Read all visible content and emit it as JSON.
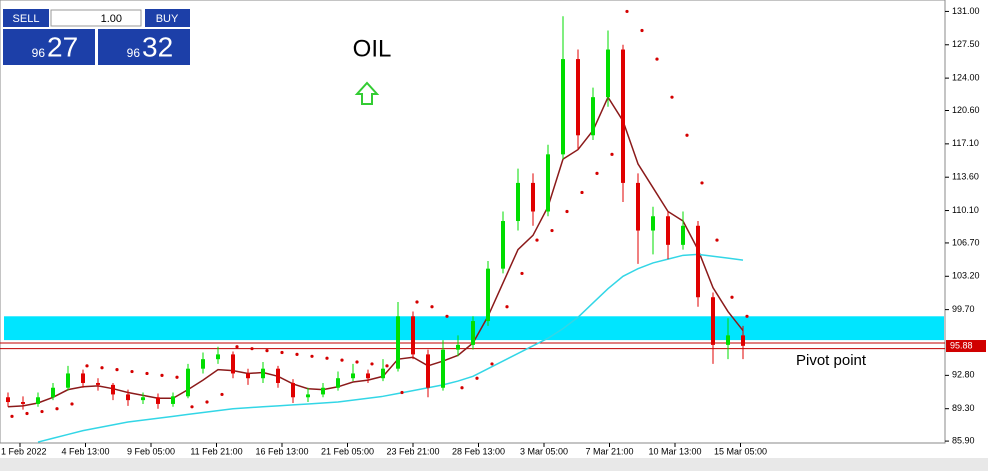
{
  "chart_data": {
    "type": "candlestick",
    "annotation": "OIL",
    "pivot_label": "Pivot point",
    "x_labels": [
      "1 Feb 2022",
      "4 Feb 13:00",
      "9 Feb 05:00",
      "11 Feb 21:00",
      "16 Feb 13:00",
      "21 Feb 05:00",
      "23 Feb 21:00",
      "28 Feb 13:00",
      "3 Mar 05:00",
      "7 Mar 21:00",
      "10 Mar 13:00",
      "15 Mar 05:00"
    ],
    "ylim": [
      85.7,
      132.2
    ],
    "yticks": [
      {
        "value": 131,
        "label": "131.00"
      },
      {
        "value": 127.5,
        "label": "127.50"
      },
      {
        "value": 124,
        "label": "124.00"
      },
      {
        "value": 120.6,
        "label": "120.60"
      },
      {
        "value": 117.1,
        "label": "117.10"
      },
      {
        "value": 113.6,
        "label": "113.60"
      },
      {
        "value": 110.1,
        "label": "110.10"
      },
      {
        "value": 106.7,
        "label": "106.70"
      },
      {
        "value": 103.2,
        "label": "103.20"
      },
      {
        "value": 99.7,
        "label": "99.70"
      },
      {
        "value": 92.8,
        "label": "92.80"
      },
      {
        "value": 89.3,
        "label": "89.30"
      },
      {
        "value": 85.9,
        "label": "85.90"
      }
    ],
    "last_price": 95.88,
    "zone": [
      96.5,
      99.0
    ],
    "zone_color": "#00e5ff",
    "levels": [
      96.2,
      95.6
    ],
    "level_color": "#c00000",
    "up_color": "#00dd00",
    "down_color": "#e00000",
    "candles": [
      [
        90.5,
        91.0,
        89.5,
        90.0
      ],
      [
        90.0,
        90.6,
        89.2,
        89.8
      ],
      [
        89.8,
        91.0,
        89.5,
        90.5
      ],
      [
        90.5,
        92.0,
        90.2,
        91.5
      ],
      [
        91.5,
        93.8,
        91.2,
        93.0
      ],
      [
        93.0,
        93.4,
        91.5,
        92.0
      ],
      [
        92.0,
        92.5,
        91.2,
        91.8
      ],
      [
        91.8,
        92.0,
        90.2,
        90.8
      ],
      [
        90.8,
        91.3,
        89.6,
        90.2
      ],
      [
        90.2,
        91.0,
        89.8,
        90.5
      ],
      [
        90.5,
        90.9,
        89.3,
        89.8
      ],
      [
        89.8,
        91.0,
        89.5,
        90.6
      ],
      [
        90.6,
        94.0,
        90.4,
        93.5
      ],
      [
        93.5,
        95.2,
        93.0,
        94.5
      ],
      [
        94.5,
        95.8,
        94.0,
        95.0
      ],
      [
        95.0,
        95.3,
        92.5,
        93.0
      ],
      [
        93.0,
        93.5,
        91.8,
        92.5
      ],
      [
        92.5,
        94.2,
        92.0,
        93.5
      ],
      [
        93.5,
        93.8,
        91.5,
        92.0
      ],
      [
        92.0,
        92.4,
        89.9,
        90.5
      ],
      [
        90.5,
        91.5,
        90.0,
        90.8
      ],
      [
        90.8,
        92.0,
        90.5,
        91.5
      ],
      [
        91.5,
        93.2,
        91.2,
        92.5
      ],
      [
        92.5,
        94.0,
        92.2,
        93.0
      ],
      [
        93.0,
        93.4,
        92.0,
        92.5
      ],
      [
        92.5,
        94.5,
        92.2,
        93.5
      ],
      [
        93.5,
        100.5,
        93.2,
        99.0
      ],
      [
        99.0,
        99.5,
        94.5,
        95.0
      ],
      [
        95.0,
        95.5,
        90.5,
        91.5
      ],
      [
        91.5,
        96.5,
        91.2,
        95.5
      ],
      [
        95.5,
        97.0,
        94.8,
        96.0
      ],
      [
        96.0,
        99.0,
        95.5,
        98.5
      ],
      [
        98.5,
        104.8,
        98.0,
        104.0
      ],
      [
        104.0,
        110.0,
        103.5,
        109.0
      ],
      [
        109.0,
        114.5,
        108.0,
        113.0
      ],
      [
        113.0,
        114.0,
        108.5,
        110.0
      ],
      [
        110.0,
        117.0,
        109.5,
        116.0
      ],
      [
        116.0,
        130.5,
        115.5,
        126.0
      ],
      [
        126.0,
        127.0,
        116.5,
        118.0
      ],
      [
        118.0,
        123.0,
        117.5,
        122.0
      ],
      [
        122.0,
        129.0,
        121.0,
        127.0
      ],
      [
        127.0,
        127.5,
        111.0,
        113.0
      ],
      [
        113.0,
        114.0,
        104.5,
        108.0
      ],
      [
        108.0,
        110.5,
        105.5,
        109.5
      ],
      [
        109.5,
        110.0,
        105.0,
        106.5
      ],
      [
        106.5,
        110.0,
        106.0,
        108.5
      ],
      [
        108.5,
        109.0,
        100.0,
        101.0
      ],
      [
        101.0,
        101.5,
        94.0,
        96.0
      ],
      [
        96.0,
        98.8,
        94.5,
        97.0
      ],
      [
        97.0,
        98.0,
        94.5,
        95.9
      ]
    ],
    "lines": [
      {
        "color": "#8b1a1a",
        "values": [
          89.5,
          89.6,
          89.9,
          90.5,
          91.3,
          91.6,
          91.7,
          91.4,
          91.0,
          90.7,
          90.4,
          90.4,
          91.3,
          92.3,
          93.4,
          93.3,
          93.0,
          93.1,
          92.7,
          91.9,
          91.4,
          91.3,
          91.6,
          92.1,
          92.3,
          92.7,
          94.5,
          94.7,
          93.8,
          94.3,
          94.9,
          96.2,
          99.0,
          102.5,
          106.0,
          107.5,
          110.5,
          115.5,
          116.5,
          118.5,
          122.0,
          119.5,
          115.0,
          112.5,
          110.0,
          109.0,
          106.0,
          102.0,
          99.5,
          97.5
        ]
      },
      {
        "color": "#33d6e6",
        "values": [
          null,
          null,
          85.8,
          86.2,
          86.6,
          87.0,
          87.3,
          87.6,
          87.9,
          88.1,
          88.3,
          88.5,
          88.7,
          88.9,
          89.1,
          89.3,
          89.4,
          89.5,
          89.6,
          89.7,
          89.8,
          89.9,
          90.0,
          90.2,
          90.4,
          90.6,
          90.9,
          91.2,
          91.5,
          91.8,
          92.2,
          92.7,
          93.5,
          94.3,
          95.1,
          95.9,
          96.7,
          97.7,
          98.9,
          100.4,
          101.9,
          103.2,
          104.0,
          104.6,
          105.0,
          105.4,
          105.5,
          105.3,
          105.1,
          104.9
        ]
      }
    ],
    "sar": {
      "color": "#d40000",
      "values": [
        88.5,
        88.8,
        89.0,
        89.3,
        89.8,
        93.8,
        93.6,
        93.4,
        93.2,
        93.0,
        92.8,
        92.6,
        89.5,
        90.0,
        90.8,
        95.8,
        95.6,
        95.4,
        95.2,
        95.0,
        94.8,
        94.6,
        94.4,
        94.2,
        94.0,
        93.8,
        91.0,
        100.5,
        100.0,
        99.0,
        91.5,
        92.5,
        94.0,
        100.0,
        103.5,
        107.0,
        108.0,
        110.0,
        112.0,
        114.0,
        116.0,
        131.0,
        129.0,
        126.0,
        122.0,
        118.0,
        113.0,
        107.0,
        101.0,
        99.0
      ]
    }
  },
  "trade_panel": {
    "sell": "SELL",
    "buy": "BUY",
    "lot": "1.00",
    "sell_big": "96",
    "sell_small": "27",
    "buy_big": "96",
    "buy_small": "32"
  }
}
